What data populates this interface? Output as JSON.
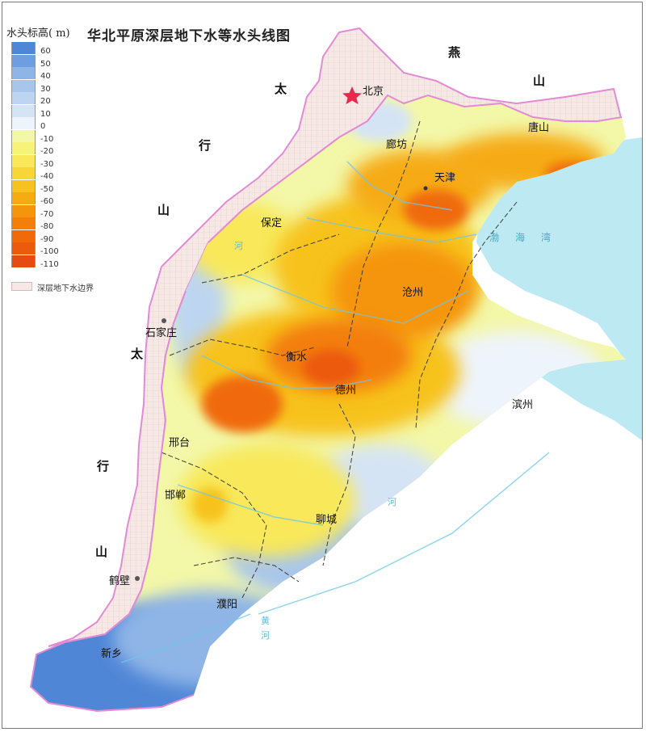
{
  "title": "华北平原深层地下水等水头线图",
  "legend": {
    "title": "水头标高( m)",
    "entries": [
      {
        "label": "60",
        "color": "#4f86d6"
      },
      {
        "label": "50",
        "color": "#6e9de0"
      },
      {
        "label": "40",
        "color": "#8fb5e7"
      },
      {
        "label": "30",
        "color": "#a8c6ec"
      },
      {
        "label": "20",
        "color": "#bdd5f0"
      },
      {
        "label": "10",
        "color": "#d5e4f5"
      },
      {
        "label": "0",
        "color": "#eef4fb"
      },
      {
        "label": "-10",
        "color": "#f3f7a8"
      },
      {
        "label": "-20",
        "color": "#f7f27a"
      },
      {
        "label": "-30",
        "color": "#f8e85a"
      },
      {
        "label": "-40",
        "color": "#f8d63a"
      },
      {
        "label": "-50",
        "color": "#f7c21f"
      },
      {
        "label": "-60",
        "color": "#f6ab12"
      },
      {
        "label": "-70",
        "color": "#f5950c"
      },
      {
        "label": "-80",
        "color": "#f37e08"
      },
      {
        "label": "-90",
        "color": "#f06a08"
      },
      {
        "label": "-100",
        "color": "#ec5a0c"
      },
      {
        "label": "-110",
        "color": "#e64b12"
      }
    ],
    "boundary_label": "深层地下水边界"
  },
  "cities": {
    "beijing": "北京",
    "langfang": "廊坊",
    "tianjin": "天津",
    "tangshan": "唐山",
    "baoding": "保定",
    "cangzhou": "沧州",
    "shijiazhuang": "石家庄",
    "hengshui": "衡水",
    "dezhou": "德州",
    "binzhou": "滨州",
    "xingtai": "邢台",
    "handan": "邯郸",
    "liaocheng": "聊城",
    "hebi": "鹤壁",
    "puyang": "濮阳",
    "xinxiang": "新乡"
  },
  "mountains": {
    "taihang": [
      "太",
      "行",
      "山"
    ],
    "yanshan": [
      "燕",
      "山"
    ]
  },
  "sea": [
    "渤",
    "海",
    "湾"
  ],
  "rivers": [
    "河",
    "河",
    "黄",
    "河"
  ],
  "colors": {
    "sea": "#bde9f2",
    "boundary": "#e28ad4",
    "grid_bg": "#f6e9e5",
    "river": "#6cc7ec",
    "star": "#e8294b"
  }
}
